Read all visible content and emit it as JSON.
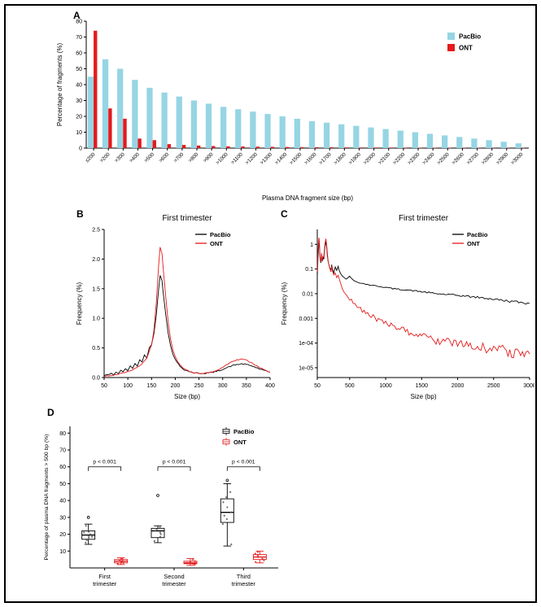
{
  "figure": {
    "panel_labels": {
      "A": "A",
      "B": "B",
      "C": "C",
      "D": "D"
    }
  },
  "charts": [
    {
      "id": "A",
      "type": "bar",
      "title": "",
      "xlabel": "Plasma DNA fragment size (bp)",
      "ylabel": "Percentage of fragments (%)",
      "ylim": [
        0,
        80
      ],
      "yticks": [
        0,
        10,
        20,
        30,
        40,
        50,
        60,
        70,
        80
      ],
      "legend_position": "top-right",
      "categories": [
        "≤200",
        ">200",
        ">300",
        ">400",
        ">500",
        ">600",
        ">700",
        ">800",
        ">900",
        ">1000",
        ">1100",
        ">1200",
        ">1300",
        ">1400",
        ">1500",
        ">1600",
        ">1700",
        ">1800",
        ">1900",
        ">2000",
        ">2100",
        ">2200",
        ">2300",
        ">2400",
        ">2500",
        ">2600",
        ">2700",
        ">2800",
        ">2900",
        ">3000"
      ],
      "series": [
        {
          "name": "PacBio",
          "color": "#96D5E4",
          "values": [
            45,
            56,
            50,
            43,
            38,
            35,
            32.5,
            30,
            28,
            26,
            24.5,
            23,
            21.5,
            20,
            18.5,
            17,
            16,
            15,
            14,
            13,
            12,
            11,
            10,
            9,
            8,
            7,
            6,
            5,
            4,
            3
          ]
        },
        {
          "name": "ONT",
          "color": "#E41A1C",
          "values": [
            74,
            25,
            18.5,
            6,
            5,
            2.5,
            2,
            1.6,
            1.3,
            1.1,
            1,
            0.9,
            0.8,
            0.7,
            0.6,
            0.55,
            0.5,
            0.45,
            0.4,
            0.38,
            0.35,
            0.3,
            0.28,
            0.25,
            0.22,
            0.2,
            0.18,
            0.16,
            0.15,
            0.14
          ]
        }
      ]
    },
    {
      "id": "B",
      "type": "line",
      "title": "First trimester",
      "xlabel": "Size (bp)",
      "ylabel": "Frequency (%)",
      "xlim": [
        50,
        400
      ],
      "xticks": [
        50,
        100,
        150,
        200,
        250,
        300,
        350,
        400
      ],
      "ylim": [
        0,
        2.5
      ],
      "yticks": [
        0,
        0.5,
        1,
        1.5,
        2,
        2.5
      ],
      "ytick_labels": [
        "0.0",
        "0.5",
        "1.0",
        "1.5",
        "2.0",
        "2.5"
      ],
      "legend_position": "top-right",
      "series": [
        {
          "name": "PacBio",
          "color": "#000000",
          "noise": 0.01,
          "x": [
            50,
            55,
            60,
            65,
            70,
            75,
            80,
            85,
            90,
            95,
            100,
            105,
            110,
            115,
            120,
            125,
            130,
            135,
            140,
            145,
            150,
            155,
            160,
            165,
            168,
            172,
            175,
            180,
            185,
            190,
            195,
            200,
            210,
            220,
            230,
            240,
            250,
            260,
            270,
            280,
            290,
            300,
            310,
            320,
            330,
            340,
            350,
            360,
            370,
            380,
            390,
            400
          ],
          "y": [
            0.03,
            0.05,
            0.04,
            0.07,
            0.05,
            0.09,
            0.07,
            0.12,
            0.09,
            0.15,
            0.12,
            0.19,
            0.15,
            0.24,
            0.2,
            0.3,
            0.26,
            0.38,
            0.34,
            0.5,
            0.55,
            0.75,
            1.05,
            1.5,
            1.73,
            1.65,
            1.4,
            1.05,
            0.75,
            0.55,
            0.4,
            0.3,
            0.19,
            0.13,
            0.1,
            0.08,
            0.07,
            0.07,
            0.08,
            0.09,
            0.11,
            0.14,
            0.17,
            0.2,
            0.22,
            0.23,
            0.22,
            0.2,
            0.17,
            0.14,
            0.11,
            0.09
          ]
        },
        {
          "name": "ONT",
          "color": "#E41A1C",
          "noise": 0.008,
          "x": [
            50,
            60,
            70,
            80,
            90,
            100,
            110,
            120,
            130,
            140,
            150,
            155,
            160,
            165,
            168,
            172,
            175,
            180,
            185,
            190,
            195,
            200,
            210,
            220,
            230,
            240,
            250,
            260,
            270,
            280,
            290,
            300,
            310,
            320,
            330,
            340,
            350,
            360,
            370,
            380,
            390,
            400
          ],
          "y": [
            0.02,
            0.03,
            0.04,
            0.06,
            0.08,
            0.1,
            0.13,
            0.17,
            0.23,
            0.33,
            0.55,
            0.8,
            1.25,
            1.9,
            2.2,
            2.1,
            1.8,
            1.35,
            0.95,
            0.65,
            0.47,
            0.35,
            0.21,
            0.14,
            0.1,
            0.08,
            0.07,
            0.07,
            0.08,
            0.1,
            0.13,
            0.17,
            0.22,
            0.27,
            0.3,
            0.31,
            0.29,
            0.25,
            0.2,
            0.16,
            0.12,
            0.09
          ]
        }
      ]
    },
    {
      "id": "C",
      "type": "line",
      "yscale": "log",
      "title": "First trimester",
      "xlabel": "Size (bp)",
      "ylabel": "Frequency (%)",
      "xlim": [
        50,
        3000
      ],
      "xticks": [
        50,
        500,
        1000,
        1500,
        2000,
        2500,
        3000
      ],
      "ylim": [
        4e-06,
        4
      ],
      "yticks": [
        1,
        0.1,
        0.01,
        0.001,
        0.0001,
        1e-05
      ],
      "ytick_labels": [
        "1",
        "0.1",
        "0.01",
        "0.001",
        "1e-04",
        "1e-05"
      ],
      "legend_position": "top-right",
      "series": [
        {
          "name": "PacBio",
          "color": "#000000",
          "noise": 0.05,
          "x": [
            50,
            60,
            70,
            75,
            80,
            90,
            100,
            110,
            120,
            130,
            140,
            150,
            160,
            170,
            180,
            190,
            200,
            220,
            240,
            250,
            260,
            280,
            300,
            320,
            340,
            350,
            370,
            400,
            450,
            500,
            550,
            600,
            700,
            800,
            900,
            1000,
            1100,
            1200,
            1300,
            1400,
            1500,
            1600,
            1700,
            1800,
            1900,
            2000,
            2100,
            2200,
            2300,
            2400,
            2500,
            2600,
            2700,
            2800,
            2900,
            3000
          ],
          "y": [
            0.05,
            0.3,
            1.0,
            1.4,
            0.8,
            0.25,
            0.18,
            0.35,
            0.2,
            0.3,
            0.25,
            0.5,
            0.9,
            1.3,
            0.8,
            0.35,
            0.2,
            0.12,
            0.09,
            0.15,
            0.1,
            0.07,
            0.12,
            0.09,
            0.13,
            0.1,
            0.07,
            0.05,
            0.04,
            0.05,
            0.035,
            0.03,
            0.025,
            0.022,
            0.02,
            0.018,
            0.016,
            0.015,
            0.014,
            0.013,
            0.012,
            0.011,
            0.01,
            0.0095,
            0.009,
            0.0085,
            0.008,
            0.0075,
            0.007,
            0.0065,
            0.006,
            0.0055,
            0.005,
            0.0047,
            0.0044,
            0.004
          ]
        },
        {
          "name": "ONT",
          "color": "#E41A1C",
          "noise": 0.25,
          "x": [
            50,
            60,
            70,
            75,
            80,
            90,
            100,
            110,
            120,
            130,
            140,
            150,
            160,
            170,
            180,
            190,
            200,
            220,
            240,
            250,
            260,
            280,
            300,
            320,
            340,
            350,
            370,
            400,
            450,
            500,
            550,
            600,
            700,
            800,
            900,
            1000,
            1100,
            1200,
            1300,
            1400,
            1500,
            1600,
            1700,
            1800,
            1900,
            2000,
            2100,
            2200,
            2300,
            2400,
            2500,
            2600,
            2700,
            2800,
            2900,
            3000
          ],
          "y": [
            0.08,
            0.5,
            1.5,
            2.0,
            1.0,
            0.3,
            0.2,
            0.4,
            0.25,
            0.35,
            0.3,
            0.6,
            1.2,
            1.8,
            1.0,
            0.4,
            0.22,
            0.12,
            0.08,
            0.12,
            0.08,
            0.05,
            0.07,
            0.045,
            0.055,
            0.04,
            0.028,
            0.016,
            0.009,
            0.006,
            0.0045,
            0.0032,
            0.0019,
            0.0013,
            0.00085,
            0.00062,
            0.00048,
            0.00038,
            0.0003,
            0.00024,
            0.0002,
            0.00016,
            0.00013,
            0.00011,
            0.0001,
            9e-05,
            8e-05,
            7e-05,
            6.5e-05,
            6e-05,
            5.5e-05,
            5e-05,
            4.6e-05,
            4.2e-05,
            3.9e-05,
            3.6e-05
          ]
        }
      ]
    },
    {
      "id": "D",
      "type": "boxplot",
      "title": "",
      "xlabel": "",
      "ylabel": "Percentage of plasma DNA fragments > 500 bp (%)",
      "ylim": [
        0,
        84
      ],
      "yticks": [
        10,
        20,
        30,
        40,
        50,
        60,
        70,
        80
      ],
      "series_colors": [
        "#000000",
        "#E41A1C"
      ],
      "point_colors": [
        "#555555",
        "#E41A1C"
      ],
      "legend": [
        "PacBio",
        "ONT"
      ],
      "legend_position": "top-right",
      "groups": [
        {
          "label_lines": [
            "First",
            "trimester"
          ],
          "boxes": [
            {
              "series": "PacBio",
              "low": 14,
              "q1": 17,
              "median": 19.5,
              "q3": 22,
              "high": 26,
              "outliers": [
                30
              ],
              "points": [
                15,
                16.5,
                18,
                18.5,
                19,
                20,
                21,
                21.5,
                25
              ]
            },
            {
              "series": "ONT",
              "low": 2,
              "q1": 3,
              "median": 4,
              "q3": 5,
              "high": 6,
              "outliers": [],
              "points": [
                2.5,
                3,
                3.5,
                4,
                4.5,
                5,
                5.5
              ]
            }
          ]
        },
        {
          "label_lines": [
            "Second",
            "trimester"
          ],
          "boxes": [
            {
              "series": "PacBio",
              "low": 15,
              "q1": 18,
              "median": 22,
              "q3": 23.5,
              "high": 25,
              "outliers": [
                43
              ],
              "points": [
                16,
                18.5,
                20,
                21,
                22,
                23,
                24
              ]
            },
            {
              "series": "ONT",
              "low": 1.5,
              "q1": 2.5,
              "median": 3,
              "q3": 4,
              "high": 5.5,
              "outliers": [],
              "points": [
                2,
                2.5,
                3,
                3.5,
                4,
                5
              ]
            }
          ]
        },
        {
          "label_lines": [
            "Third",
            "trimester"
          ],
          "boxes": [
            {
              "series": "PacBio",
              "low": 13,
              "q1": 27,
              "median": 33,
              "q3": 41,
              "high": 50,
              "outliers": [
                52
              ],
              "points": [
                14,
                26,
                29,
                31,
                33,
                36,
                39,
                42,
                45
              ]
            },
            {
              "series": "ONT",
              "low": 3,
              "q1": 5,
              "median": 6.5,
              "q3": 8,
              "high": 10,
              "outliers": [],
              "points": [
                3.5,
                4.5,
                5.5,
                6.5,
                7.5,
                8.5,
                9.5
              ]
            }
          ]
        }
      ],
      "annotations": [
        {
          "text": "p < 0.001",
          "bracket_y": 60
        },
        {
          "text": "p < 0.001",
          "bracket_y": 60
        },
        {
          "text": "p < 0.001",
          "bracket_y": 60
        }
      ]
    }
  ]
}
